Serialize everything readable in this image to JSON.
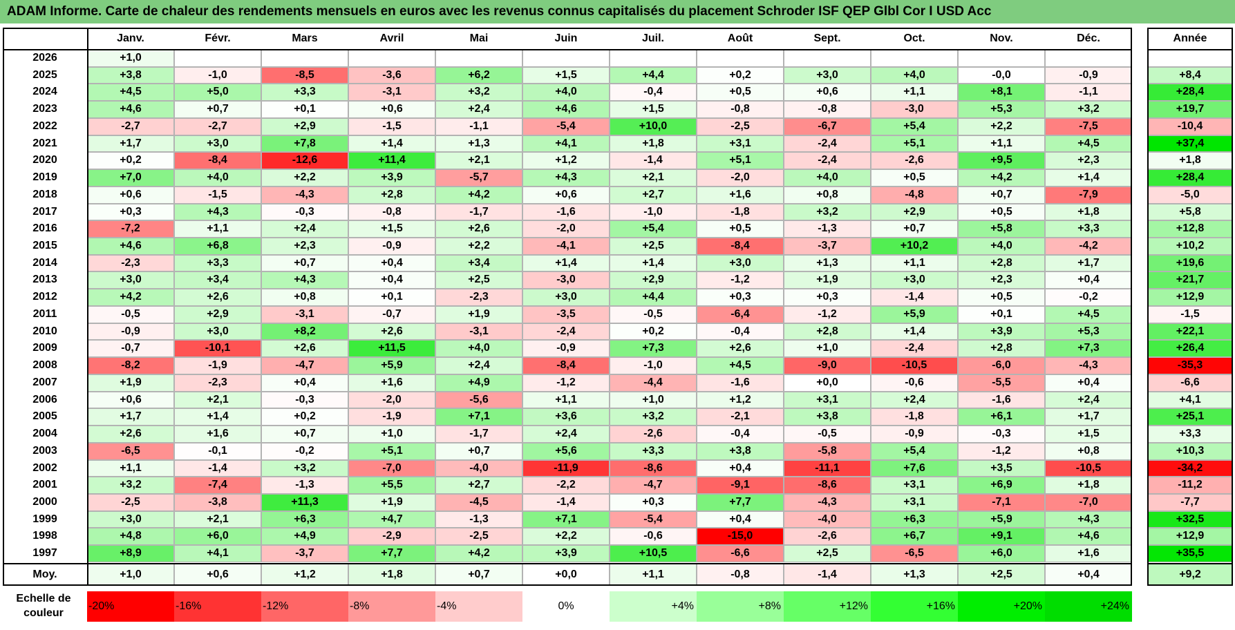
{
  "title": "ADAM Informe. Carte de chaleur des rendements mensuels en euros avec les revenus connus capitalisés du placement Schroder ISF QEP Glbl Cor I USD Acc",
  "chart_data": {
    "type": "heatmap",
    "columns": [
      "Janv.",
      "Févr.",
      "Mars",
      "Avril",
      "Mai",
      "Juin",
      "Juil.",
      "Août",
      "Sept.",
      "Oct.",
      "Nov.",
      "Déc."
    ],
    "annual_header": "Année",
    "rows": [
      {
        "year": "2026",
        "months": [
          "+1,0",
          "",
          "",
          "",
          "",
          "",
          "",
          "",
          "",
          "",
          "",
          ""
        ],
        "annual": ""
      },
      {
        "year": "2025",
        "months": [
          "+3,8",
          "-1,0",
          "-8,5",
          "-3,6",
          "+6,2",
          "+1,5",
          "+4,4",
          "+0,2",
          "+3,0",
          "+4,0",
          "-0,0",
          "-0,9"
        ],
        "annual": "+8,4"
      },
      {
        "year": "2024",
        "months": [
          "+4,5",
          "+5,0",
          "+3,3",
          "-3,1",
          "+3,2",
          "+4,0",
          "-0,4",
          "+0,5",
          "+0,6",
          "+1,1",
          "+8,1",
          "-1,1"
        ],
        "annual": "+28,4"
      },
      {
        "year": "2023",
        "months": [
          "+4,6",
          "+0,7",
          "+0,1",
          "+0,6",
          "+2,4",
          "+4,6",
          "+1,5",
          "-0,8",
          "-0,8",
          "-3,0",
          "+5,3",
          "+3,2"
        ],
        "annual": "+19,7"
      },
      {
        "year": "2022",
        "months": [
          "-2,7",
          "-2,7",
          "+2,9",
          "-1,5",
          "-1,1",
          "-5,4",
          "+10,0",
          "-2,5",
          "-6,7",
          "+5,4",
          "+2,2",
          "-7,5"
        ],
        "annual": "-10,4"
      },
      {
        "year": "2021",
        "months": [
          "+1,7",
          "+3,0",
          "+7,8",
          "+1,4",
          "+1,3",
          "+4,1",
          "+1,8",
          "+3,1",
          "-2,4",
          "+5,1",
          "+1,1",
          "+4,5"
        ],
        "annual": "+37,4"
      },
      {
        "year": "2020",
        "months": [
          "+0,2",
          "-8,4",
          "-12,6",
          "+11,4",
          "+2,1",
          "+1,2",
          "-1,4",
          "+5,1",
          "-2,4",
          "-2,6",
          "+9,5",
          "+2,3"
        ],
        "annual": "+1,8"
      },
      {
        "year": "2019",
        "months": [
          "+7,0",
          "+4,0",
          "+2,2",
          "+3,9",
          "-5,7",
          "+4,3",
          "+2,1",
          "-2,0",
          "+4,0",
          "+0,5",
          "+4,2",
          "+1,4"
        ],
        "annual": "+28,4"
      },
      {
        "year": "2018",
        "months": [
          "+0,6",
          "-1,5",
          "-4,3",
          "+2,8",
          "+4,2",
          "+0,6",
          "+2,7",
          "+1,6",
          "+0,8",
          "-4,8",
          "+0,7",
          "-7,9"
        ],
        "annual": "-5,0"
      },
      {
        "year": "2017",
        "months": [
          "+0,3",
          "+4,3",
          "-0,3",
          "-0,8",
          "-1,7",
          "-1,6",
          "-1,0",
          "-1,8",
          "+3,2",
          "+2,9",
          "+0,5",
          "+1,8"
        ],
        "annual": "+5,8"
      },
      {
        "year": "2016",
        "months": [
          "-7,2",
          "+1,1",
          "+2,4",
          "+1,5",
          "+2,6",
          "-2,0",
          "+5,4",
          "+0,5",
          "-1,3",
          "+0,7",
          "+5,8",
          "+3,3"
        ],
        "annual": "+12,8"
      },
      {
        "year": "2015",
        "months": [
          "+4,6",
          "+6,8",
          "+2,3",
          "-0,9",
          "+2,2",
          "-4,1",
          "+2,5",
          "-8,4",
          "-3,7",
          "+10,2",
          "+4,0",
          "-4,2"
        ],
        "annual": "+10,2"
      },
      {
        "year": "2014",
        "months": [
          "-2,3",
          "+3,3",
          "+0,7",
          "+0,4",
          "+3,4",
          "+1,4",
          "+1,4",
          "+3,0",
          "+1,3",
          "+1,1",
          "+2,8",
          "+1,7"
        ],
        "annual": "+19,6"
      },
      {
        "year": "2013",
        "months": [
          "+3,0",
          "+3,4",
          "+4,3",
          "+0,4",
          "+2,5",
          "-3,0",
          "+2,9",
          "-1,2",
          "+1,9",
          "+3,0",
          "+2,3",
          "+0,4"
        ],
        "annual": "+21,7"
      },
      {
        "year": "2012",
        "months": [
          "+4,2",
          "+2,6",
          "+0,8",
          "+0,1",
          "-2,3",
          "+3,0",
          "+4,4",
          "+0,3",
          "+0,3",
          "-1,4",
          "+0,5",
          "-0,2"
        ],
        "annual": "+12,9"
      },
      {
        "year": "2011",
        "months": [
          "-0,5",
          "+2,9",
          "-3,1",
          "-0,7",
          "+1,9",
          "-3,5",
          "-0,5",
          "-6,4",
          "-1,2",
          "+5,9",
          "+0,1",
          "+4,5"
        ],
        "annual": "-1,5"
      },
      {
        "year": "2010",
        "months": [
          "-0,9",
          "+3,0",
          "+8,2",
          "+2,6",
          "-3,1",
          "-2,4",
          "+0,2",
          "-0,4",
          "+2,8",
          "+1,4",
          "+3,9",
          "+5,3"
        ],
        "annual": "+22,1"
      },
      {
        "year": "2009",
        "months": [
          "-0,7",
          "-10,1",
          "+2,6",
          "+11,5",
          "+4,0",
          "-0,9",
          "+7,3",
          "+2,6",
          "+1,0",
          "-2,4",
          "+2,8",
          "+7,3"
        ],
        "annual": "+26,4"
      },
      {
        "year": "2008",
        "months": [
          "-8,2",
          "-1,9",
          "-4,7",
          "+5,9",
          "+2,4",
          "-8,4",
          "-1,0",
          "+4,5",
          "-9,0",
          "-10,5",
          "-6,0",
          "-4,3"
        ],
        "annual": "-35,3"
      },
      {
        "year": "2007",
        "months": [
          "+1,9",
          "-2,3",
          "+0,4",
          "+1,6",
          "+4,9",
          "-1,2",
          "-4,4",
          "-1,6",
          "+0,0",
          "-0,6",
          "-5,5",
          "+0,4"
        ],
        "annual": "-6,6"
      },
      {
        "year": "2006",
        "months": [
          "+0,6",
          "+2,1",
          "-0,3",
          "-2,0",
          "-5,6",
          "+1,1",
          "+1,0",
          "+1,2",
          "+3,1",
          "+2,4",
          "-1,6",
          "+2,4"
        ],
        "annual": "+4,1"
      },
      {
        "year": "2005",
        "months": [
          "+1,7",
          "+1,4",
          "+0,2",
          "-1,9",
          "+7,1",
          "+3,6",
          "+3,2",
          "-2,1",
          "+3,8",
          "-1,8",
          "+6,1",
          "+1,7"
        ],
        "annual": "+25,1"
      },
      {
        "year": "2004",
        "months": [
          "+2,6",
          "+1,6",
          "+0,7",
          "+1,0",
          "-1,7",
          "+2,4",
          "-2,6",
          "-0,4",
          "-0,5",
          "-0,9",
          "-0,3",
          "+1,5"
        ],
        "annual": "+3,3"
      },
      {
        "year": "2003",
        "months": [
          "-6,5",
          "-0,1",
          "-0,2",
          "+5,1",
          "+0,7",
          "+5,6",
          "+3,3",
          "+3,8",
          "-5,8",
          "+5,4",
          "-1,2",
          "+0,8"
        ],
        "annual": "+10,3"
      },
      {
        "year": "2002",
        "months": [
          "+1,1",
          "-1,4",
          "+3,2",
          "-7,0",
          "-4,0",
          "-11,9",
          "-8,6",
          "+0,4",
          "-11,1",
          "+7,6",
          "+3,5",
          "-10,5"
        ],
        "annual": "-34,2"
      },
      {
        "year": "2001",
        "months": [
          "+3,2",
          "-7,4",
          "-1,3",
          "+5,5",
          "+2,7",
          "-2,2",
          "-4,7",
          "-9,1",
          "-8,6",
          "+3,1",
          "+6,9",
          "+1,8"
        ],
        "annual": "-11,2"
      },
      {
        "year": "2000",
        "months": [
          "-2,5",
          "-3,8",
          "+11,3",
          "+1,9",
          "-4,5",
          "-1,4",
          "+0,3",
          "+7,7",
          "-4,3",
          "+3,1",
          "-7,1",
          "-7,0"
        ],
        "annual": "-7,7"
      },
      {
        "year": "1999",
        "months": [
          "+3,0",
          "+2,1",
          "+6,3",
          "+4,7",
          "-1,3",
          "+7,1",
          "-5,4",
          "+0,4",
          "-4,0",
          "+6,3",
          "+5,9",
          "+4,3"
        ],
        "annual": "+32,5"
      },
      {
        "year": "1998",
        "months": [
          "+4,8",
          "+6,0",
          "+4,9",
          "-2,9",
          "-2,5",
          "+2,2",
          "-0,6",
          "-15,0",
          "-2,6",
          "+6,7",
          "+9,1",
          "+4,6"
        ],
        "annual": "+12,9"
      },
      {
        "year": "1997",
        "months": [
          "+8,9",
          "+4,1",
          "-3,7",
          "+7,7",
          "+4,2",
          "+3,9",
          "+10,5",
          "-6,6",
          "+2,5",
          "-6,5",
          "+6,0",
          "+1,6"
        ],
        "annual": "+35,5"
      }
    ],
    "average": {
      "label": "Moy.",
      "months": [
        "+1,0",
        "+0,6",
        "+1,2",
        "+1,8",
        "+0,7",
        "+0,0",
        "+1,1",
        "-0,8",
        "-1,4",
        "+1,3",
        "+2,5",
        "+0,4"
      ],
      "annual": "+9,2"
    },
    "color_scale": {
      "label": [
        "Echelle de",
        "couleur"
      ],
      "stops": [
        {
          "label": "-20%",
          "value": -20,
          "color": "#ff0000"
        },
        {
          "label": "-16%",
          "value": -16,
          "color": "#ff3333"
        },
        {
          "label": "-12%",
          "value": -12,
          "color": "#ff6666"
        },
        {
          "label": "-8%",
          "value": -8,
          "color": "#ff9999"
        },
        {
          "label": "-4%",
          "value": -4,
          "color": "#ffcccc"
        },
        {
          "label": "0%",
          "value": 0,
          "color": "#ffffff"
        },
        {
          "label": "+4%",
          "value": 4,
          "color": "#ccffcc"
        },
        {
          "label": "+8%",
          "value": 8,
          "color": "#99ff99"
        },
        {
          "label": "+12%",
          "value": 12,
          "color": "#66ff66"
        },
        {
          "label": "+16%",
          "value": 16,
          "color": "#33ff33"
        },
        {
          "label": "+20%",
          "value": 20,
          "color": "#00ee00"
        },
        {
          "label": "+24%",
          "value": 24,
          "color": "#00dd00"
        }
      ]
    }
  }
}
